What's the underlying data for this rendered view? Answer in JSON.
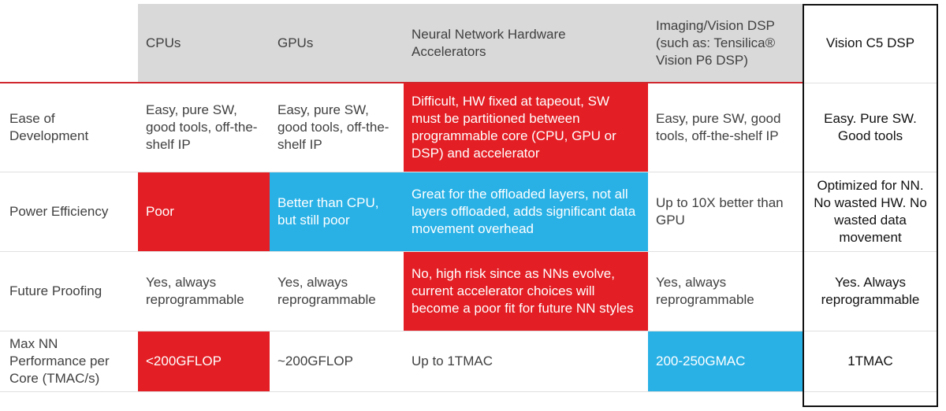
{
  "table": {
    "header": [
      "CPUs",
      "GPUs",
      "Neural Network Hardware Accelerators",
      "Imaging/Vision DSP (such as: Tensilica® Vision P6 DSP)",
      "Vision C5 DSP"
    ],
    "rows": [
      [
        "Ease of Development",
        "Easy, pure SW, good tools, off-the-shelf IP",
        "Easy, pure SW, good tools, off-the-shelf IP",
        "Difficult, HW fixed at tapeout, SW must be partitioned between programmable core (CPU, GPU or DSP) and accelerator",
        "Easy, pure SW, good tools, off-the-shelf IP",
        "Easy. Pure SW. Good tools"
      ],
      [
        "Power Efficiency",
        "Poor",
        "Better than CPU, but still poor",
        "Great for the offloaded layers, not all layers offloaded, adds significant data movement overhead",
        "Up to 10X better than GPU",
        "Optimized for NN. No wasted HW. No wasted data movement"
      ],
      [
        "Future Proofing",
        "Yes, always reprogrammable",
        "Yes, always reprogrammable",
        "No, high risk since as NNs evolve, current accelerator choices will become a poor fit for future NN styles",
        "Yes, always reprogrammable",
        "Yes. Always reprogrammable"
      ],
      [
        "Max NN Performance per Core (TMAC/s)",
        "<200GFLOP",
        "~200GFLOP",
        "Up to 1TMAC",
        "200-250GMAC",
        "1TMAC"
      ]
    ]
  }
}
